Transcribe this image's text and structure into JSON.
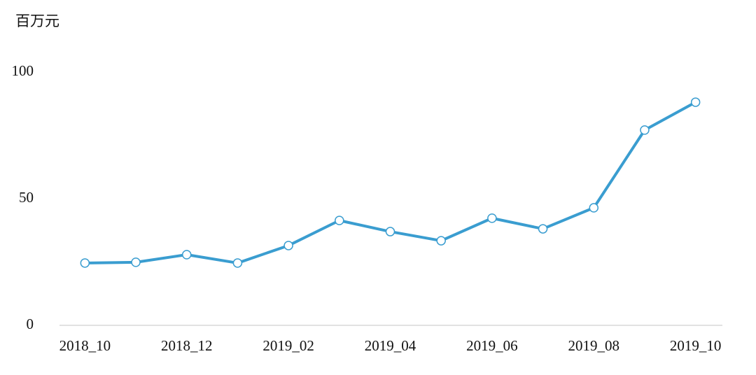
{
  "chart_data": {
    "type": "line",
    "unit_label": "百万元",
    "categories": [
      "2018_10",
      null,
      "2018_12",
      null,
      "2019_02",
      null,
      "2019_04",
      null,
      "2019_06",
      null,
      "2019_08",
      null,
      "2019_10"
    ],
    "series": [
      {
        "color": "#3a9dd0",
        "values": [
          24.6,
          24.9,
          27.9,
          24.6,
          31.5,
          41.4,
          37.0,
          33.4,
          42.3,
          38.1,
          46.4,
          77.1,
          88.1
        ]
      }
    ],
    "ylim": [
      0,
      100
    ],
    "yticks": [
      0,
      50,
      100
    ],
    "grid": false
  }
}
